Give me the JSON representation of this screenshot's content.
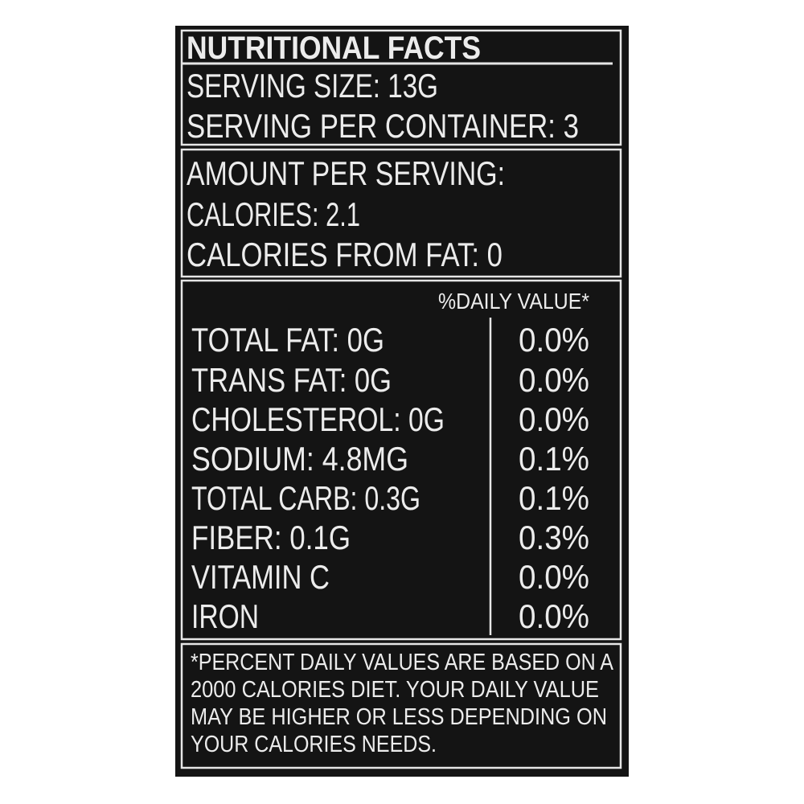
{
  "header": {
    "title": "NUTRITIONAL FACTS"
  },
  "serving": [
    "SERVING SIZE: 13G",
    "SERVING PER CONTAINER: 3"
  ],
  "amount": [
    "AMOUNT PER SERVING:",
    "CALORIES: 2.1",
    "CALORIES FROM FAT: 0"
  ],
  "table": {
    "header": "%DAILY VALUE*",
    "rows": [
      [
        "TOTAL FAT: 0G",
        "0.0%"
      ],
      [
        "TRANS FAT: 0G",
        "0.0%"
      ],
      [
        "CHOLESTEROL: 0G",
        "0.0%"
      ],
      [
        "SODIUM: 4.8MG",
        "0.1%"
      ],
      [
        "TOTAL CARB: 0.3G",
        "0.1%"
      ],
      [
        "FIBER: 0.1G",
        "0.3%"
      ],
      [
        "VITAMIN C",
        "0.0%"
      ],
      [
        "IRON",
        "0.0%"
      ]
    ]
  },
  "footnote": [
    "*PERCENT DAILY VALUES ARE BASED ON A",
    "2000 CALORIES DIET. YOUR DAILY VALUE",
    "MAY BE HIGHER OR LESS DEPENDING ON",
    "YOUR CALORIES NEEDS."
  ]
}
